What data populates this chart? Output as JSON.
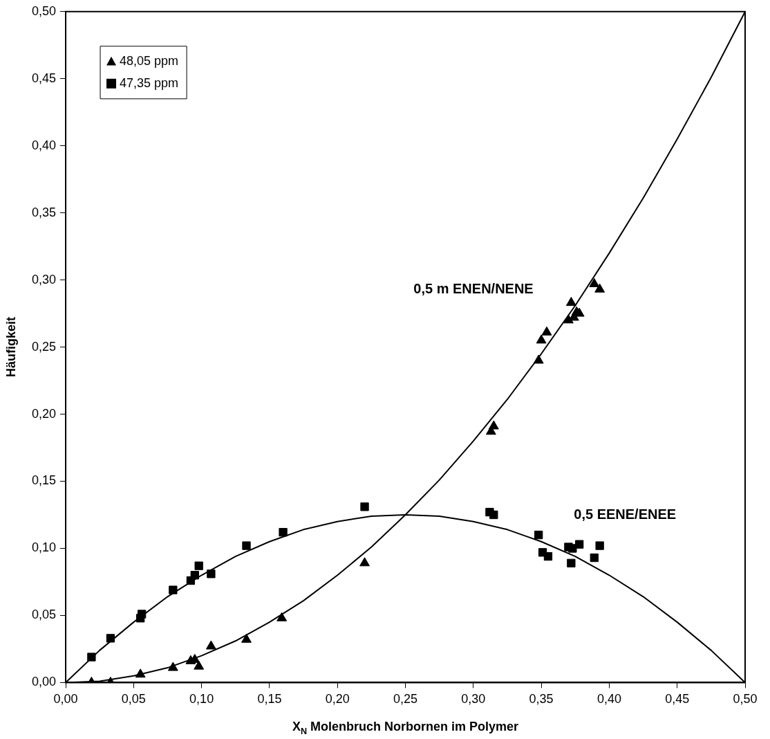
{
  "chart_data": {
    "type": "scatter",
    "xlabel": "X$_{N}$ Molenbruch Norbornen im Polymer",
    "ylabel": "Häufigkeit",
    "xlim": [
      0,
      0.5
    ],
    "ylim": [
      0,
      0.5
    ],
    "xticks": [
      {
        "value": 0,
        "label": "0,00"
      },
      {
        "value": 0.05,
        "label": "0,05"
      },
      {
        "value": 0.1,
        "label": "0,10"
      },
      {
        "value": 0.15,
        "label": "0,15"
      },
      {
        "value": 0.2,
        "label": "0,20"
      },
      {
        "value": 0.25,
        "label": "0,25"
      },
      {
        "value": 0.3,
        "label": "0,30"
      },
      {
        "value": 0.35,
        "label": "0,35"
      },
      {
        "value": 0.4,
        "label": "0,40"
      },
      {
        "value": 0.45,
        "label": "0,45"
      },
      {
        "value": 0.5,
        "label": "0,50"
      }
    ],
    "yticks": [
      {
        "value": 0,
        "label": "0,00"
      },
      {
        "value": 0.05,
        "label": "0,05"
      },
      {
        "value": 0.1,
        "label": "0,10"
      },
      {
        "value": 0.15,
        "label": "0,15"
      },
      {
        "value": 0.2,
        "label": "0,20"
      },
      {
        "value": 0.25,
        "label": "0,25"
      },
      {
        "value": 0.3,
        "label": "0,30"
      },
      {
        "value": 0.35,
        "label": "0,35"
      },
      {
        "value": 0.4,
        "label": "0,40"
      },
      {
        "value": 0.45,
        "label": "0,45"
      },
      {
        "value": 0.5,
        "label": "0,50"
      }
    ],
    "grid": false,
    "legend": "top left",
    "annotations": [
      "0,5 m ENEN/NENE",
      "0,5 EENE/ENEE"
    ],
    "series": [
      {
        "name": "48,05 ppm",
        "marker": "triangle",
        "color": "#000000",
        "x": [
          0.019,
          0.033,
          0.055,
          0.079,
          0.092,
          0.095,
          0.098,
          0.107,
          0.133,
          0.159,
          0.22,
          0.313,
          0.315,
          0.348,
          0.35,
          0.354,
          0.37,
          0.372,
          0.374,
          0.376,
          0.378,
          0.389,
          0.393
        ],
        "values": [
          0,
          0,
          0.006,
          0.011,
          0.016,
          0.017,
          0.012,
          0.027,
          0.032,
          0.048,
          0.089,
          0.187,
          0.191,
          0.24,
          0.255,
          0.261,
          0.27,
          0.283,
          0.272,
          0.276,
          0.275,
          0.297,
          0.293
        ]
      },
      {
        "name": "47,35 ppm",
        "marker": "square",
        "color": "#000000",
        "x": [
          0.019,
          0.033,
          0.055,
          0.056,
          0.079,
          0.092,
          0.095,
          0.098,
          0.107,
          0.133,
          0.16,
          0.22,
          0.312,
          0.315,
          0.348,
          0.351,
          0.355,
          0.37,
          0.372,
          0.373,
          0.376,
          0.378,
          0.389,
          0.393
        ],
        "values": [
          0.019,
          0.033,
          0.048,
          0.051,
          0.069,
          0.076,
          0.08,
          0.087,
          0.081,
          0.102,
          0.112,
          0.131,
          0.127,
          0.125,
          0.11,
          0.097,
          0.094,
          0.101,
          0.089,
          0.1,
          null,
          0.103,
          0.093,
          0.102
        ]
      },
      {
        "type": "line",
        "marker": "none",
        "color": "#000000",
        "x": [
          0,
          0.025,
          0.05,
          0.075,
          0.1,
          0.125,
          0.15,
          0.175,
          0.2,
          0.225,
          0.25,
          0.275,
          0.3,
          0.325,
          0.35,
          0.375,
          0.4,
          0.425,
          0.45,
          0.475,
          0.5
        ],
        "values": [
          0,
          0.001,
          0.005,
          0.011,
          0.02,
          0.031,
          0.045,
          0.061,
          0.08,
          0.101,
          0.125,
          0.151,
          0.18,
          0.211,
          0.245,
          0.281,
          0.32,
          0.361,
          0.405,
          0.451,
          0.5
        ]
      },
      {
        "type": "line",
        "marker": "none",
        "color": "#000000",
        "x": [
          0,
          0.025,
          0.05,
          0.075,
          0.1,
          0.125,
          0.15,
          0.175,
          0.2,
          0.225,
          0.25,
          0.275,
          0.3,
          0.325,
          0.35,
          0.375,
          0.4,
          0.425,
          0.45,
          0.475,
          0.5
        ],
        "values": [
          0,
          0.024,
          0.045,
          0.064,
          0.08,
          0.094,
          0.105,
          0.114,
          0.12,
          0.124,
          0.125,
          0.124,
          0.12,
          0.114,
          0.105,
          0.094,
          0.08,
          0.064,
          0.045,
          0.024,
          0
        ]
      }
    ]
  }
}
